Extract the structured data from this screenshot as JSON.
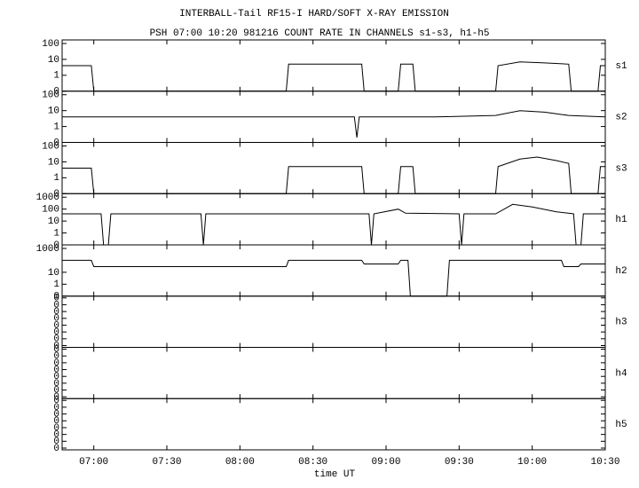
{
  "chart_data": {
    "type": "line",
    "title": "INTERBALL-Tail RF15-I HARD/SOFT X-RAY EMISSION",
    "subtitle": "PSH 07:00 10:20 981216  COUNT RATE IN CHANNELS s1-s3, h1-h5",
    "xlabel": "time UT",
    "xlim": [
      "06:47",
      "10:30"
    ],
    "xticks": [
      "07:00",
      "07:30",
      "08:00",
      "08:30",
      "09:00",
      "09:30",
      "10:00",
      "10:30"
    ],
    "color": "#000000",
    "panels": [
      {
        "label": "s1",
        "scale": "log",
        "ylim": [
          0,
          100
        ],
        "yticks": [
          0,
          1,
          10,
          100
        ],
        "x": [
          "06:47",
          "06:59",
          "07:00",
          "08:19",
          "08:20",
          "08:50",
          "08:51",
          "09:05",
          "09:06",
          "09:11",
          "09:12",
          "09:45",
          "09:46",
          "09:55",
          "10:05",
          "10:15",
          "10:16",
          "10:27",
          "10:28",
          "10:30"
        ],
        "values": [
          4,
          4,
          0,
          0,
          5,
          5,
          0,
          0,
          5,
          5,
          0,
          0,
          4,
          7,
          6,
          5,
          0,
          0,
          4,
          4
        ]
      },
      {
        "label": "s2",
        "scale": "log",
        "ylim": [
          0,
          100
        ],
        "yticks": [
          0,
          1,
          10,
          100
        ],
        "x": [
          "06:47",
          "07:30",
          "08:00",
          "08:30",
          "08:47",
          "08:48",
          "08:49",
          "09:00",
          "09:20",
          "09:45",
          "09:55",
          "10:05",
          "10:15",
          "10:30"
        ],
        "values": [
          4,
          4,
          4,
          4,
          4,
          0.2,
          4,
          4,
          4,
          5,
          10,
          8,
          5,
          4
        ]
      },
      {
        "label": "s3",
        "scale": "log",
        "ylim": [
          0,
          100
        ],
        "yticks": [
          0,
          1,
          10,
          100
        ],
        "x": [
          "06:47",
          "06:59",
          "07:00",
          "08:19",
          "08:20",
          "08:50",
          "08:51",
          "09:05",
          "09:06",
          "09:11",
          "09:12",
          "09:45",
          "09:46",
          "09:55",
          "10:02",
          "10:10",
          "10:15",
          "10:16",
          "10:27",
          "10:28",
          "10:30"
        ],
        "values": [
          4,
          4,
          0,
          0,
          5,
          5,
          0,
          0,
          5,
          5,
          0,
          0,
          5,
          15,
          20,
          12,
          8,
          0,
          0,
          5,
          5
        ]
      },
      {
        "label": "h1",
        "scale": "log",
        "ylim": [
          0,
          1000
        ],
        "yticks": [
          0,
          1,
          10,
          100,
          1000
        ],
        "x": [
          "06:47",
          "07:03",
          "07:04",
          "07:06",
          "07:07",
          "07:44",
          "07:45",
          "07:46",
          "08:53",
          "08:54",
          "08:55",
          "09:05",
          "09:08",
          "09:30",
          "09:31",
          "09:32",
          "09:45",
          "09:52",
          "10:00",
          "10:10",
          "10:17",
          "10:18",
          "10:20",
          "10:21",
          "10:30"
        ],
        "values": [
          40,
          40,
          0,
          0,
          40,
          40,
          0,
          40,
          40,
          0,
          40,
          100,
          45,
          40,
          0,
          40,
          40,
          250,
          150,
          60,
          40,
          0,
          0,
          40,
          40
        ]
      },
      {
        "label": "h2",
        "scale": "log",
        "ylim": [
          0,
          1000
        ],
        "yticks": [
          0,
          1,
          10,
          1000
        ],
        "x": [
          "06:47",
          "06:59",
          "07:00",
          "08:19",
          "08:20",
          "08:50",
          "08:51",
          "09:05",
          "09:06",
          "09:09",
          "09:10",
          "09:25",
          "09:26",
          "10:12",
          "10:13",
          "10:19",
          "10:20",
          "10:30"
        ],
        "values": [
          100,
          100,
          30,
          30,
          100,
          100,
          50,
          50,
          100,
          100,
          0,
          0,
          100,
          100,
          30,
          30,
          50,
          50
        ]
      },
      {
        "label": "h3",
        "ytick_labels": [
          "0",
          "0",
          "0",
          "0",
          "0",
          "0",
          "0",
          "0"
        ]
      },
      {
        "label": "h4",
        "ytick_labels": [
          "0",
          "0",
          "0",
          "0",
          "0",
          "0",
          "0",
          "0"
        ]
      },
      {
        "label": "h5",
        "ytick_labels": [
          "0",
          "0",
          "0",
          "0",
          "0",
          "0",
          "0",
          "0"
        ]
      }
    ]
  }
}
